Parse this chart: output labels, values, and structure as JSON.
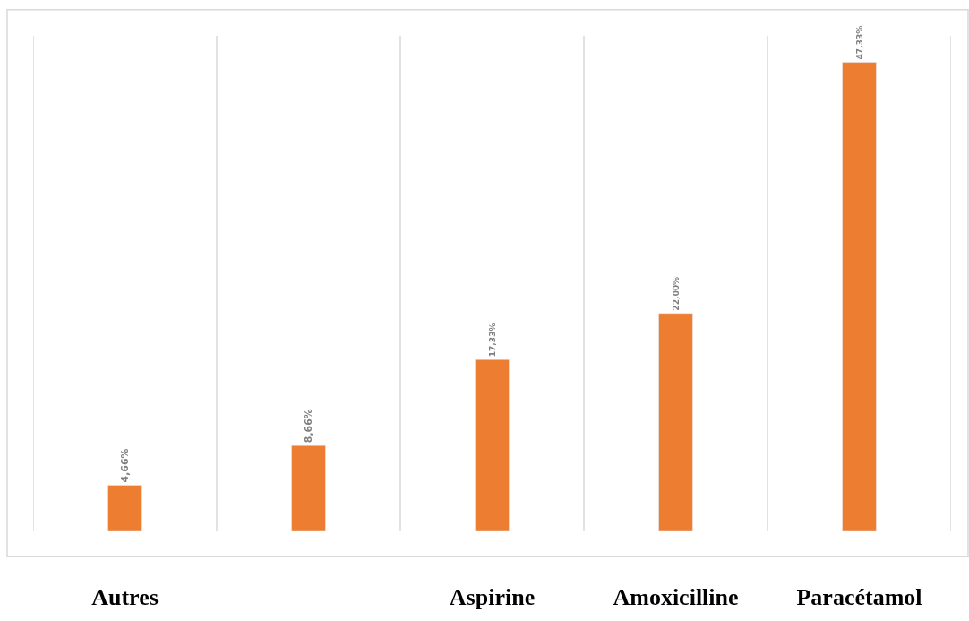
{
  "chart_data": {
    "type": "bar",
    "categories": [
      "Autres",
      null,
      "Aspirine",
      "Amoxicilline",
      "Paracétamol"
    ],
    "values": [
      4.66,
      8.66,
      17.33,
      22.0,
      47.33
    ],
    "value_labels": [
      "4,66%",
      "8,66%",
      "17,33%",
      "22,00%",
      "47,33%"
    ],
    "color": "#ed7d31",
    "ylim": [
      0,
      50
    ],
    "grid": "x"
  }
}
